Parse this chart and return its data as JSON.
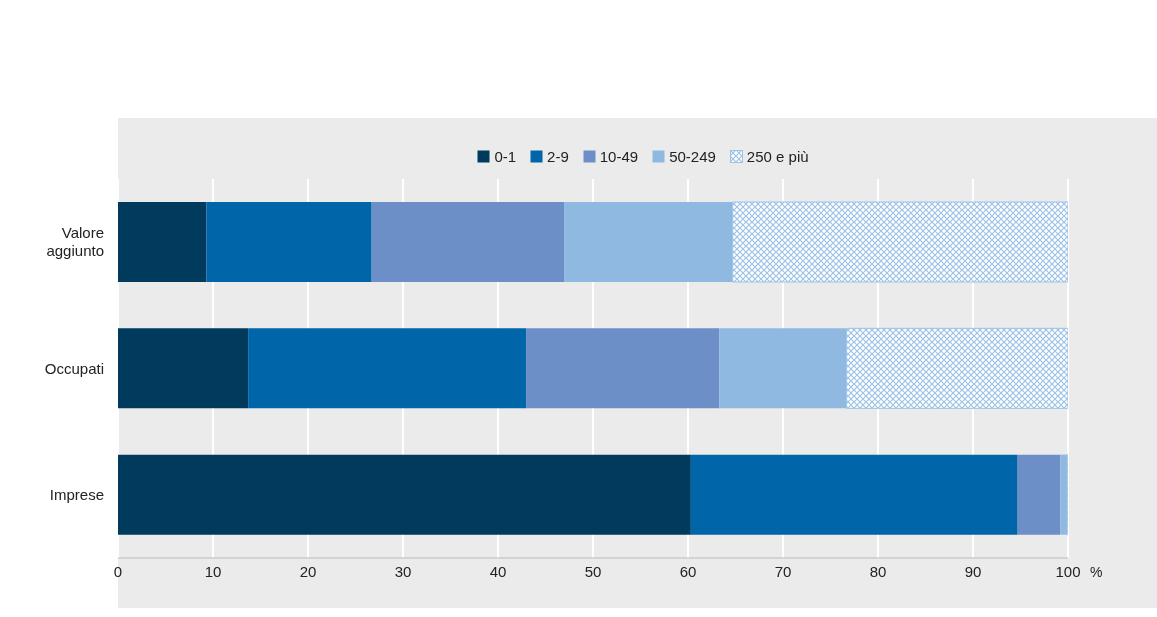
{
  "chart_data": {
    "type": "bar",
    "orientation": "horizontal",
    "stacked": true,
    "xlabel": "%",
    "categories": [
      "Valore aggiunto",
      "Occupati",
      "Imprese"
    ],
    "series": [
      {
        "name": "0-1",
        "color": "#003a5d",
        "values": [
          9.3,
          13.7,
          60.3
        ]
      },
      {
        "name": "2-9",
        "color": "#0065a9",
        "values": [
          17.4,
          29.3,
          34.4
        ]
      },
      {
        "name": "10-49",
        "color": "#6d8fc8",
        "values": [
          20.3,
          20.3,
          4.5
        ]
      },
      {
        "name": "50-249",
        "color": "#8fb9e1",
        "values": [
          17.7,
          13.4,
          0.7
        ]
      },
      {
        "name": "250 e più",
        "color": "#9cc3e6",
        "values": [
          35.3,
          23.3,
          0.1
        ]
      }
    ],
    "xlim": [
      0,
      100
    ],
    "xticks": [
      0,
      10,
      20,
      30,
      40,
      50,
      60,
      70,
      80,
      90,
      100
    ],
    "grid": "x",
    "legend": "top"
  }
}
